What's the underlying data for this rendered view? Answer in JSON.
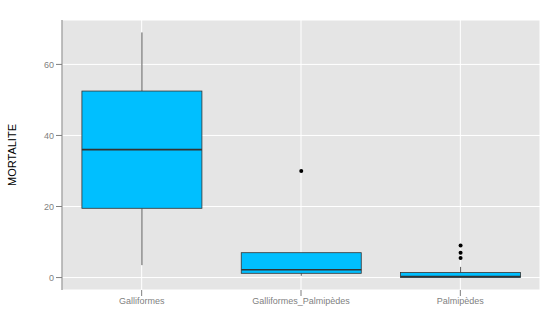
{
  "chart_data": {
    "type": "box",
    "ylabel": "MORTALITE",
    "categories": [
      "Galliformes",
      "Galliformes_Palmipèdes",
      "Palmipèdes"
    ],
    "min": [
      3.5,
      0.5,
      0
    ],
    "q1": [
      19.5,
      1.2,
      0
    ],
    "median": [
      36,
      2.2,
      0.3
    ],
    "q3": [
      52.5,
      7,
      1.4
    ],
    "max": [
      69,
      7,
      3
    ],
    "outliers": [
      [],
      [
        30
      ],
      [
        5.5,
        7,
        9
      ]
    ],
    "color": "#00BFFF",
    "ylim": [
      -3.5,
      72.5
    ],
    "yticks": [
      0,
      20,
      40,
      60
    ],
    "grid": true
  }
}
